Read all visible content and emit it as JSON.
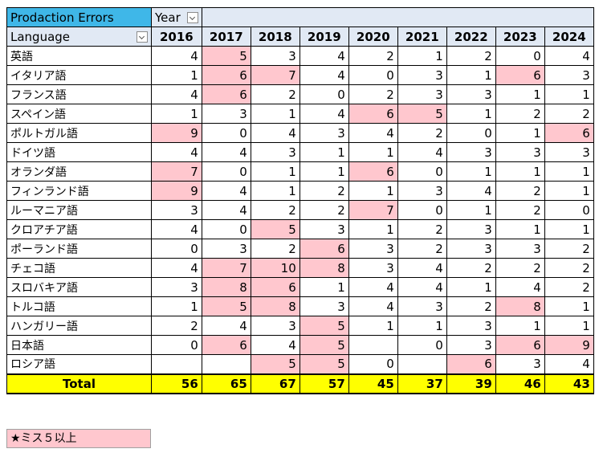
{
  "header": {
    "title": "Prodaction Errors",
    "year_label": "Year",
    "language_label": "Language",
    "year_filter_icon": "chevron-down-icon",
    "language_filter_icon": "chevron-down-icon"
  },
  "years": [
    "2016",
    "2017",
    "2018",
    "2019",
    "2020",
    "2021",
    "2022",
    "2023",
    "2024"
  ],
  "rows": [
    {
      "lang": "英語",
      "values": [
        "4",
        "5",
        "3",
        "4",
        "2",
        "1",
        "2",
        "0",
        "4"
      ],
      "hi": [
        false,
        true,
        false,
        false,
        false,
        false,
        false,
        false,
        false
      ]
    },
    {
      "lang": "イタリア語",
      "values": [
        "1",
        "6",
        "7",
        "4",
        "0",
        "3",
        "1",
        "6",
        "3"
      ],
      "hi": [
        false,
        true,
        true,
        false,
        false,
        false,
        false,
        true,
        false
      ]
    },
    {
      "lang": "フランス語",
      "values": [
        "4",
        "6",
        "2",
        "0",
        "2",
        "3",
        "3",
        "1",
        "1"
      ],
      "hi": [
        false,
        true,
        false,
        false,
        false,
        false,
        false,
        false,
        false
      ]
    },
    {
      "lang": "スペイン語",
      "values": [
        "1",
        "3",
        "1",
        "4",
        "6",
        "5",
        "1",
        "2",
        "2"
      ],
      "hi": [
        false,
        false,
        false,
        false,
        true,
        true,
        false,
        false,
        false
      ]
    },
    {
      "lang": "ポルトガル語",
      "values": [
        "9",
        "0",
        "4",
        "3",
        "4",
        "2",
        "0",
        "1",
        "6"
      ],
      "hi": [
        true,
        false,
        false,
        false,
        false,
        false,
        false,
        false,
        true
      ]
    },
    {
      "lang": "ドイツ語",
      "values": [
        "4",
        "4",
        "3",
        "1",
        "1",
        "4",
        "3",
        "3",
        "3"
      ],
      "hi": [
        false,
        false,
        false,
        false,
        false,
        false,
        false,
        false,
        false
      ]
    },
    {
      "lang": "オランダ語",
      "values": [
        "7",
        "0",
        "1",
        "1",
        "6",
        "0",
        "1",
        "1",
        "1"
      ],
      "hi": [
        true,
        false,
        false,
        false,
        true,
        false,
        false,
        false,
        false
      ]
    },
    {
      "lang": "フィンランド語",
      "values": [
        "9",
        "4",
        "1",
        "2",
        "1",
        "3",
        "4",
        "2",
        "1"
      ],
      "hi": [
        true,
        false,
        false,
        false,
        false,
        false,
        false,
        false,
        false
      ]
    },
    {
      "lang": "ルーマニア語",
      "values": [
        "3",
        "4",
        "2",
        "2",
        "7",
        "0",
        "1",
        "2",
        "0"
      ],
      "hi": [
        false,
        false,
        false,
        false,
        true,
        false,
        false,
        false,
        false
      ]
    },
    {
      "lang": "クロアチア語",
      "values": [
        "4",
        "0",
        "5",
        "3",
        "1",
        "2",
        "3",
        "1",
        "1"
      ],
      "hi": [
        false,
        false,
        true,
        false,
        false,
        false,
        false,
        false,
        false
      ]
    },
    {
      "lang": "ポーランド語",
      "values": [
        "0",
        "3",
        "2",
        "6",
        "3",
        "2",
        "3",
        "3",
        "2"
      ],
      "hi": [
        false,
        false,
        false,
        true,
        false,
        false,
        false,
        false,
        false
      ]
    },
    {
      "lang": "チェコ語",
      "values": [
        "4",
        "7",
        "10",
        "8",
        "3",
        "4",
        "2",
        "2",
        "2"
      ],
      "hi": [
        false,
        true,
        true,
        true,
        false,
        false,
        false,
        false,
        false
      ]
    },
    {
      "lang": "スロバキア語",
      "values": [
        "3",
        "8",
        "6",
        "1",
        "4",
        "4",
        "1",
        "4",
        "2"
      ],
      "hi": [
        false,
        true,
        true,
        false,
        false,
        false,
        false,
        false,
        false
      ]
    },
    {
      "lang": "トルコ語",
      "values": [
        "1",
        "5",
        "8",
        "3",
        "4",
        "3",
        "2",
        "8",
        "1"
      ],
      "hi": [
        false,
        true,
        true,
        false,
        false,
        false,
        false,
        true,
        false
      ]
    },
    {
      "lang": "ハンガリー語",
      "values": [
        "2",
        "4",
        "3",
        "5",
        "1",
        "1",
        "3",
        "1",
        "1"
      ],
      "hi": [
        false,
        false,
        false,
        true,
        false,
        false,
        false,
        false,
        false
      ]
    },
    {
      "lang": "日本語",
      "values": [
        "0",
        "6",
        "4",
        "5",
        "",
        "0",
        "3",
        "6",
        "9"
      ],
      "hi": [
        false,
        true,
        false,
        true,
        false,
        false,
        false,
        true,
        true
      ]
    },
    {
      "lang": "ロシア語",
      "values": [
        "",
        "",
        "5",
        "5",
        "0",
        "",
        "6",
        "3",
        "4"
      ],
      "hi": [
        false,
        false,
        true,
        true,
        false,
        false,
        true,
        false,
        false
      ]
    }
  ],
  "total": {
    "label": "Total",
    "values": [
      "56",
      "65",
      "67",
      "57",
      "45",
      "37",
      "39",
      "46",
      "43"
    ]
  },
  "legend": {
    "text": "★ミス５以上",
    "color": "#ffc7ce"
  },
  "colors": {
    "title_bg": "#3fb7e8",
    "header_bg": "#e1e9f4",
    "highlight_bg": "#ffc7ce",
    "total_bg": "#ffff00"
  }
}
